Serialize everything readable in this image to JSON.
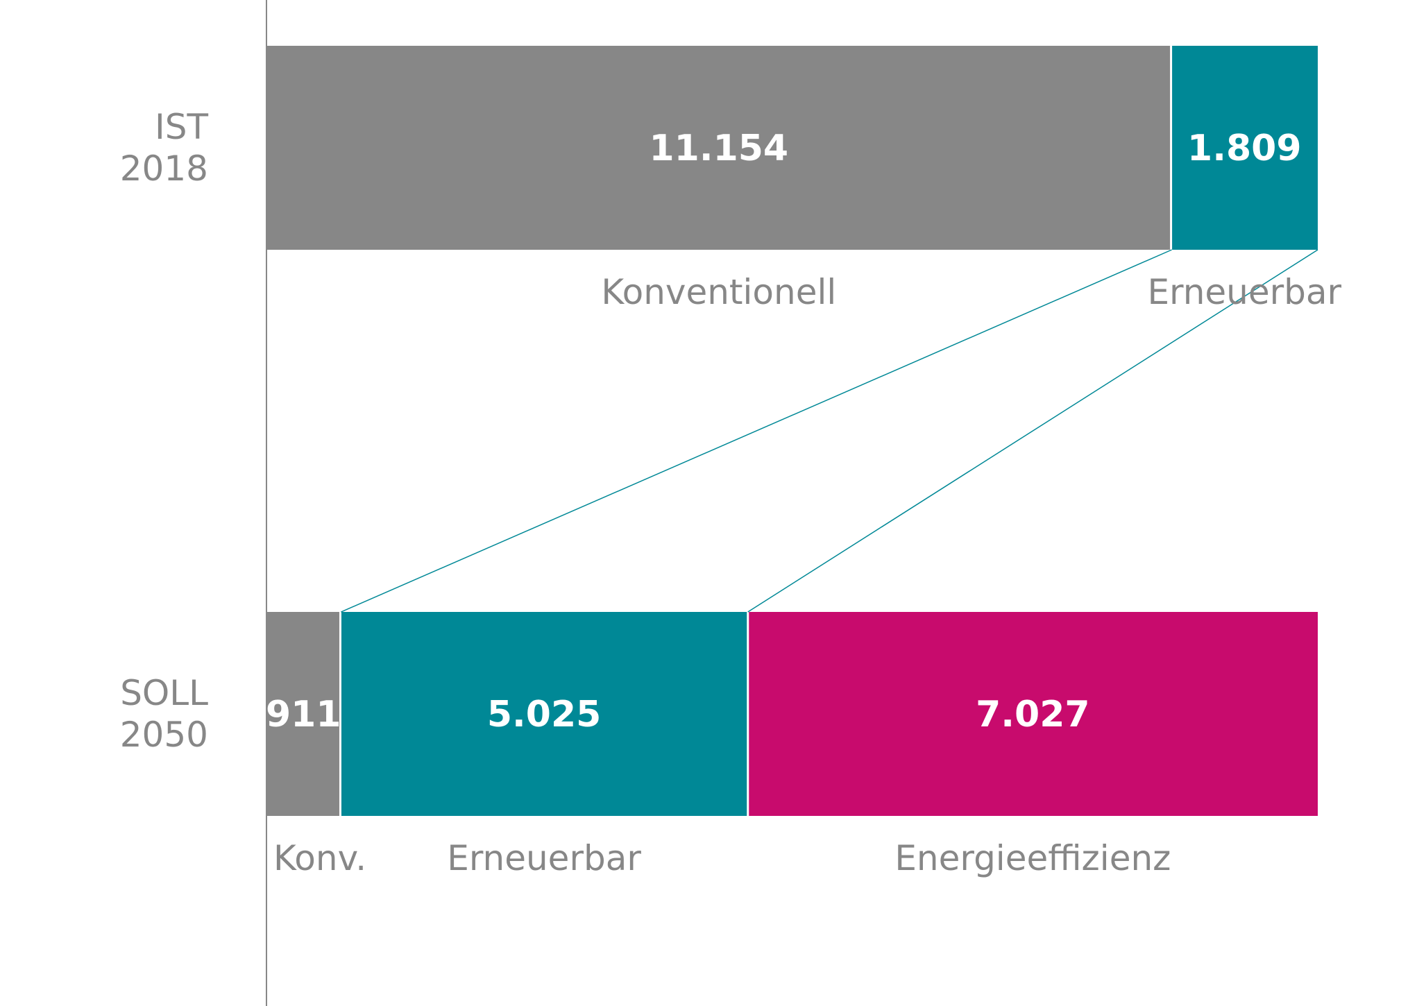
{
  "chart_data": {
    "type": "bar",
    "orientation": "horizontal",
    "stacked": true,
    "title": "",
    "categories": [
      {
        "line1": "IST",
        "line2": "2018"
      },
      {
        "line1": "SOLL",
        "line2": "2050"
      }
    ],
    "series_per_category": [
      [
        {
          "name": "Konventionell",
          "value": 11154,
          "label": "11.154",
          "color": "#878787"
        },
        {
          "name": "Erneuerbar",
          "value": 1809,
          "label": "1.809",
          "color": "#008896"
        }
      ],
      [
        {
          "name": "Konv.",
          "value": 911,
          "label": "911",
          "color": "#878787"
        },
        {
          "name": "Erneuerbar",
          "value": 5025,
          "label": "5.025",
          "color": "#008896"
        },
        {
          "name": "Energieeffizienz",
          "value": 7027,
          "label": "7.027",
          "color": "#c80b6d"
        }
      ]
    ],
    "xlim": [
      0,
      12963
    ],
    "connector_color": "#008896",
    "axis_color": "#878787",
    "grid": false,
    "legend": "none"
  }
}
